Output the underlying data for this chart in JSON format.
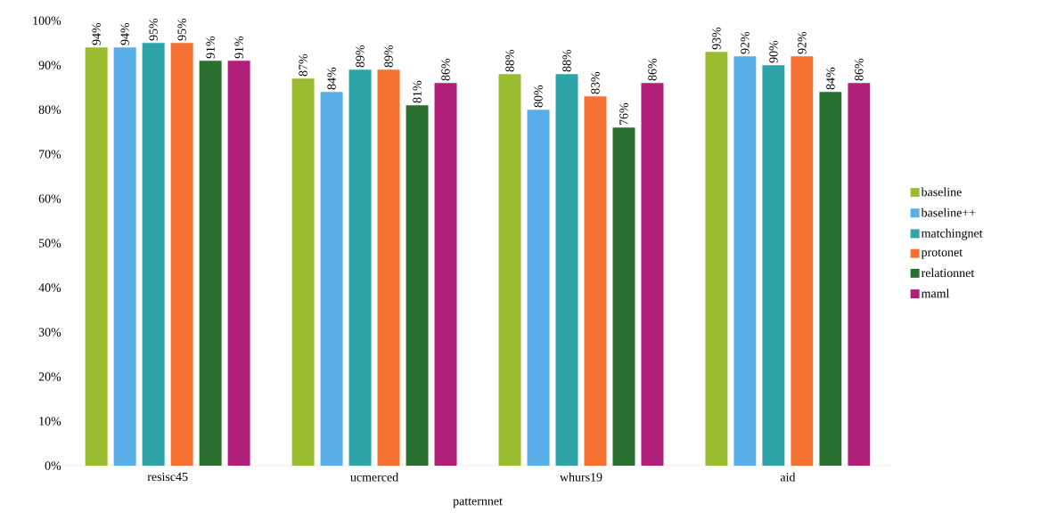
{
  "chart_data": {
    "type": "bar",
    "xlabel": "patternnet",
    "categories": [
      "resisc45",
      "ucmerced",
      "whurs19",
      "aid"
    ],
    "ylim": [
      0,
      100
    ],
    "yticks": [
      {
        "value": 0,
        "label": "0%"
      },
      {
        "value": 10,
        "label": "10%"
      },
      {
        "value": 20,
        "label": "20%"
      },
      {
        "value": 30,
        "label": "30%"
      },
      {
        "value": 40,
        "label": "40%"
      },
      {
        "value": 50,
        "label": "50%"
      },
      {
        "value": 60,
        "label": "60%"
      },
      {
        "value": 70,
        "label": "70%"
      },
      {
        "value": 80,
        "label": "80%"
      },
      {
        "value": 90,
        "label": "90%"
      },
      {
        "value": 100,
        "label": "100%"
      }
    ],
    "legend": "right",
    "series": [
      {
        "name": "baseline",
        "color": "#9bbb30",
        "values": [
          94,
          87,
          88,
          93
        ],
        "value_labels": [
          "94%",
          "87%",
          "88%",
          "93%"
        ]
      },
      {
        "name": "baseline++",
        "color": "#5aaee8",
        "values": [
          94,
          84,
          80,
          92
        ],
        "value_labels": [
          "94%",
          "84%",
          "80%",
          "92%"
        ]
      },
      {
        "name": "matchingnet",
        "color": "#2ea3a8",
        "values": [
          95,
          89,
          88,
          90
        ],
        "value_labels": [
          "95%",
          "89%",
          "88%",
          "90%"
        ]
      },
      {
        "name": "protonet",
        "color": "#f47132",
        "values": [
          95,
          89,
          83,
          92
        ],
        "value_labels": [
          "95%",
          "89%",
          "83%",
          "92%"
        ]
      },
      {
        "name": "relationnet",
        "color": "#2a7030",
        "values": [
          91,
          81,
          76,
          84
        ],
        "value_labels": [
          "91%",
          "81%",
          "76%",
          "84%"
        ]
      },
      {
        "name": "maml",
        "color": "#b01f7a",
        "values": [
          91,
          86,
          86,
          86
        ],
        "value_labels": [
          "91%",
          "86%",
          "86%",
          "86%"
        ]
      }
    ]
  }
}
